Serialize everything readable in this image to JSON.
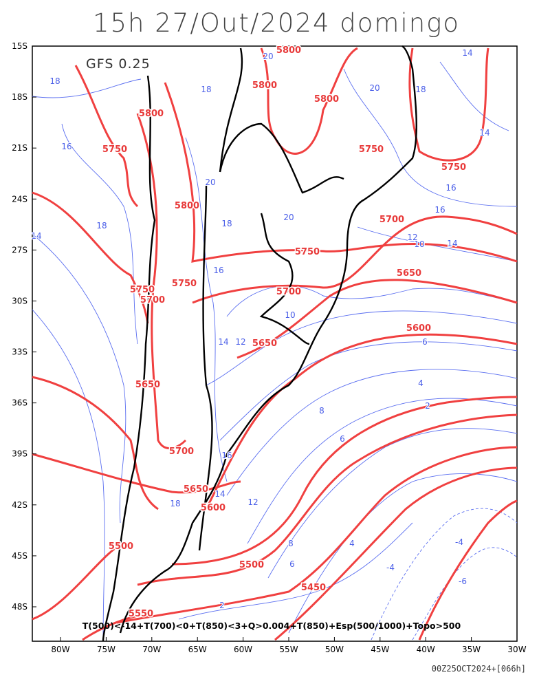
{
  "header": {
    "title": "15h 27/Out/2024 domingo",
    "model": "GFS 0.25"
  },
  "axes": {
    "lat_ticks": [
      {
        "value": -15,
        "label": "15S"
      },
      {
        "value": -18,
        "label": "18S"
      },
      {
        "value": -21,
        "label": "21S"
      },
      {
        "value": -24,
        "label": "24S"
      },
      {
        "value": -27,
        "label": "27S"
      },
      {
        "value": -30,
        "label": "30S"
      },
      {
        "value": -33,
        "label": "33S"
      },
      {
        "value": -36,
        "label": "36S"
      },
      {
        "value": -39,
        "label": "39S"
      },
      {
        "value": -42,
        "label": "42S"
      },
      {
        "value": -45,
        "label": "45S"
      },
      {
        "value": -48,
        "label": "48S"
      }
    ],
    "lon_ticks": [
      {
        "value": -80,
        "label": "80W"
      },
      {
        "value": -75,
        "label": "75W"
      },
      {
        "value": -70,
        "label": "70W"
      },
      {
        "value": -65,
        "label": "65W"
      },
      {
        "value": -60,
        "label": "60W"
      },
      {
        "value": -55,
        "label": "55W"
      },
      {
        "value": -50,
        "label": "50W"
      },
      {
        "value": -45,
        "label": "45W"
      },
      {
        "value": -40,
        "label": "40W"
      },
      {
        "value": -35,
        "label": "35W"
      },
      {
        "value": -30,
        "label": "30W"
      }
    ]
  },
  "height_labels": [
    5800,
    5800,
    5800,
    5800,
    5800,
    5750,
    5750,
    5750,
    5750,
    5750,
    5750,
    5700,
    5700,
    5700,
    5700,
    5650,
    5650,
    5650,
    5650,
    5600,
    5600,
    5500,
    5500,
    5450,
    5550
  ],
  "thickness_labels": [
    18,
    18,
    18,
    18,
    18,
    18,
    16,
    16,
    16,
    16,
    16,
    20,
    20,
    20,
    20,
    14,
    14,
    14,
    14,
    14,
    14,
    12,
    12,
    12,
    10,
    10,
    8,
    8,
    6,
    6,
    6,
    4,
    4,
    2,
    2,
    -4,
    -4,
    -6
  ],
  "legend": "T(500)<-14+T(700)<0+T(850)<3+Q>0.004+T(850)+Esp(500/1000)+Topo>500",
  "footer": "00Z25OCT2024+[066h]"
}
